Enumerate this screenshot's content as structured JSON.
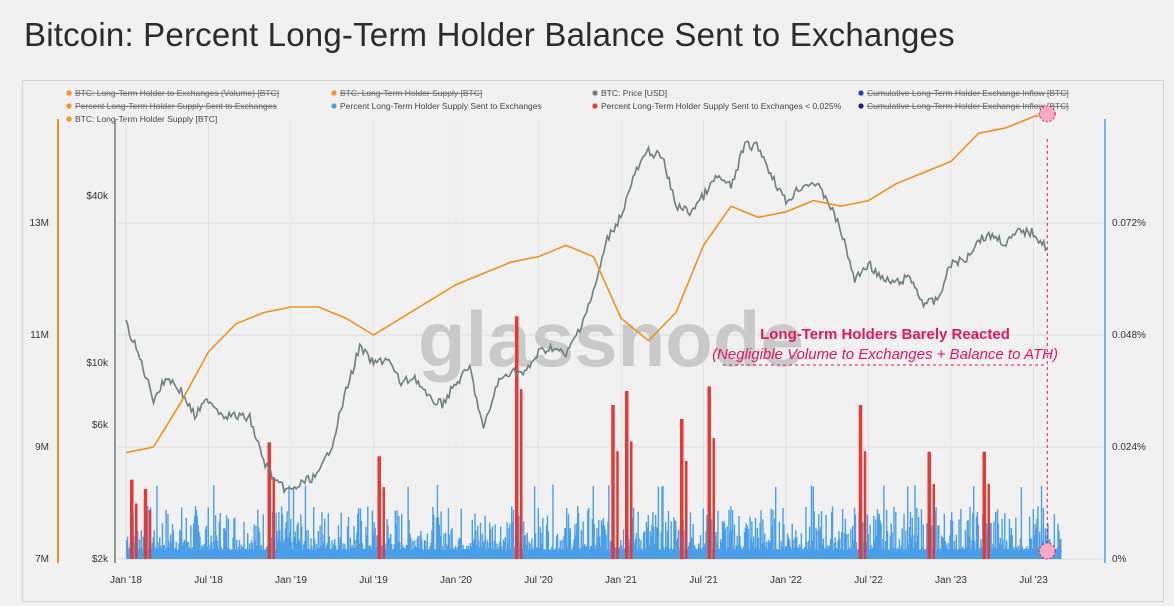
{
  "page": {
    "title": "Bitcoin: Percent Long-Term Holder Balance Sent to Exchanges"
  },
  "legend": [
    {
      "label": "BTC: Long-Term Holder to Exchanges (Volume) [BTC]",
      "color": "#f7931a",
      "hidden": true
    },
    {
      "label": "BTC: Long-Term Holder Supply [BTC]",
      "color": "#f7931a",
      "hidden": true
    },
    {
      "label": "BTC: Price [USD]",
      "color": "#6e7f80",
      "hidden": false
    },
    {
      "label": "Cumulative Long-Term Holder Exchange Inflow [BTC]",
      "color": "#1f3fd6",
      "hidden": true
    },
    {
      "label": "Percent Long-Term Holder Supply Sent to Exchanges",
      "color": "#f7931a",
      "hidden": true
    },
    {
      "label": "Percent Long-Term Holder Supply Sent to Exchanges",
      "color": "#4a9fe8",
      "hidden": false
    },
    {
      "label": "Percent Long-Term Holder Supply Sent to Exchanges < 0.025%",
      "color": "#e53935",
      "hidden": false
    },
    {
      "label": "Cumulative Long-Term Holder Exchange Inflow [BTC]",
      "color": "#1a237e",
      "hidden": true
    },
    {
      "label": "BTC: Long-Term Holder Supply [BTC]",
      "color": "#f7931a",
      "hidden": false
    }
  ],
  "watermark": "glassnode",
  "annotation": {
    "title": "Long-Term Holders Barely Reacted",
    "subtitle": "(Negligible Volume to Exchanges + Balance to ATH)"
  },
  "colors": {
    "price": "#6e7f80",
    "supply": "#f0901c",
    "percent": "#4a9fe8",
    "percent_low": "#e53935",
    "accent": "#e0185c"
  },
  "chart_data": {
    "type": "line",
    "x_ticks": [
      "Jan '18",
      "Jul '18",
      "Jan '19",
      "Jul '19",
      "Jan '20",
      "Jul '20",
      "Jan '21",
      "Jul '21",
      "Jan '22",
      "Jul '22",
      "Jan '23",
      "Jul '23"
    ],
    "y_left_supply_ticks": [
      "13M",
      "11M",
      "9M",
      "7M"
    ],
    "y_left_price_ticks": [
      "$40k",
      "$10k",
      "$6k",
      "$2k"
    ],
    "y_right_ticks": [
      "0.072%",
      "0.048%",
      "0.024%",
      "0%"
    ],
    "price_scale": "log",
    "series": [
      {
        "name": "BTC: Price [USD]",
        "x": [
          "2018-01",
          "2018-02",
          "2018-03",
          "2018-04",
          "2018-05",
          "2018-06",
          "2018-07",
          "2018-08",
          "2018-09",
          "2018-10",
          "2018-11",
          "2018-12",
          "2019-01",
          "2019-02",
          "2019-03",
          "2019-04",
          "2019-05",
          "2019-06",
          "2019-07",
          "2019-08",
          "2019-09",
          "2019-10",
          "2019-11",
          "2019-12",
          "2020-01",
          "2020-02",
          "2020-03",
          "2020-04",
          "2020-05",
          "2020-06",
          "2020-07",
          "2020-08",
          "2020-09",
          "2020-10",
          "2020-11",
          "2020-12",
          "2021-01",
          "2021-02",
          "2021-03",
          "2021-04",
          "2021-05",
          "2021-06",
          "2021-07",
          "2021-08",
          "2021-09",
          "2021-10",
          "2021-11",
          "2021-12",
          "2022-01",
          "2022-02",
          "2022-03",
          "2022-04",
          "2022-05",
          "2022-06",
          "2022-07",
          "2022-08",
          "2022-09",
          "2022-10",
          "2022-11",
          "2022-12",
          "2023-01",
          "2023-02",
          "2023-03",
          "2023-04",
          "2023-05",
          "2023-06",
          "2023-07",
          "2023-08"
        ],
        "values": [
          14000,
          10500,
          7500,
          9000,
          8000,
          6500,
          7500,
          6600,
          6500,
          6400,
          4500,
          3700,
          3500,
          3800,
          4000,
          5200,
          8000,
          11500,
          10000,
          10500,
          8500,
          9000,
          7500,
          7200,
          8500,
          9700,
          5800,
          8500,
          9500,
          9200,
          11000,
          11500,
          10700,
          13500,
          18000,
          28000,
          34000,
          48000,
          58000,
          55000,
          37000,
          35000,
          40000,
          47000,
          43000,
          61000,
          60000,
          47000,
          38000,
          43000,
          45000,
          39000,
          30000,
          20000,
          23000,
          20000,
          19500,
          20500,
          16500,
          16800,
          23000,
          23500,
          28000,
          29000,
          27000,
          30000,
          29500,
          26000
        ]
      },
      {
        "name": "BTC: Long-Term Holder Supply [BTC]",
        "x": [
          "2018-01",
          "2018-03",
          "2018-05",
          "2018-07",
          "2018-09",
          "2018-11",
          "2019-01",
          "2019-03",
          "2019-05",
          "2019-07",
          "2019-09",
          "2019-11",
          "2020-01",
          "2020-03",
          "2020-05",
          "2020-07",
          "2020-09",
          "2020-11",
          "2021-01",
          "2021-03",
          "2021-05",
          "2021-07",
          "2021-09",
          "2021-11",
          "2022-01",
          "2022-03",
          "2022-05",
          "2022-07",
          "2022-09",
          "2022-11",
          "2023-01",
          "2023-03",
          "2023-05",
          "2023-07",
          "2023-08"
        ],
        "values": [
          8.9,
          9.0,
          9.8,
          10.7,
          11.2,
          11.4,
          11.5,
          11.5,
          11.3,
          11.0,
          11.3,
          11.6,
          11.9,
          12.1,
          12.3,
          12.4,
          12.6,
          12.4,
          11.3,
          10.9,
          11.4,
          12.6,
          13.3,
          13.1,
          13.2,
          13.4,
          13.3,
          13.4,
          13.7,
          13.9,
          14.1,
          14.6,
          14.7,
          14.9,
          14.95
        ]
      },
      {
        "name": "Percent Long-Term Holder Supply Sent to Exchanges",
        "typical_range": [
          0.002,
          0.012
        ],
        "spikes": [
          {
            "date": "2018-01",
            "value": 0.017
          },
          {
            "date": "2018-02",
            "value": 0.015
          },
          {
            "date": "2018-11",
            "value": 0.025
          },
          {
            "date": "2019-07",
            "value": 0.022
          },
          {
            "date": "2020-05",
            "value": 0.052
          },
          {
            "date": "2020-12",
            "value": 0.033
          },
          {
            "date": "2021-01",
            "value": 0.036
          },
          {
            "date": "2021-05",
            "value": 0.03
          },
          {
            "date": "2021-07",
            "value": 0.037
          },
          {
            "date": "2022-06",
            "value": 0.033
          },
          {
            "date": "2022-11",
            "value": 0.023
          },
          {
            "date": "2023-03",
            "value": 0.023
          }
        ]
      }
    ]
  }
}
